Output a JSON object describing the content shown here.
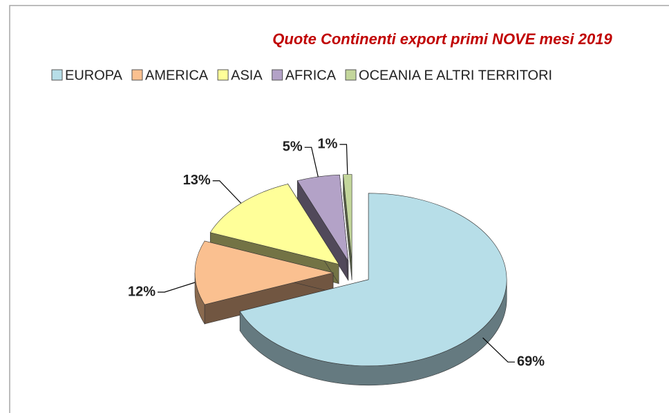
{
  "chart_data": {
    "type": "pie",
    "title": "Quote Continenti export primi NOVE mesi 2019",
    "categories": [
      "EUROPA",
      "AMERICA",
      "ASIA",
      "AFRICA",
      "OCEANIA E ALTRI TERRITORI"
    ],
    "values": [
      69,
      12,
      13,
      5,
      1
    ],
    "value_labels": [
      "69%",
      "12%",
      "13%",
      "5%",
      "1%"
    ],
    "colors": [
      "#b7dee8",
      "#fac090",
      "#ffff99",
      "#b3a2c7",
      "#c3d69b"
    ],
    "legend": "top"
  }
}
